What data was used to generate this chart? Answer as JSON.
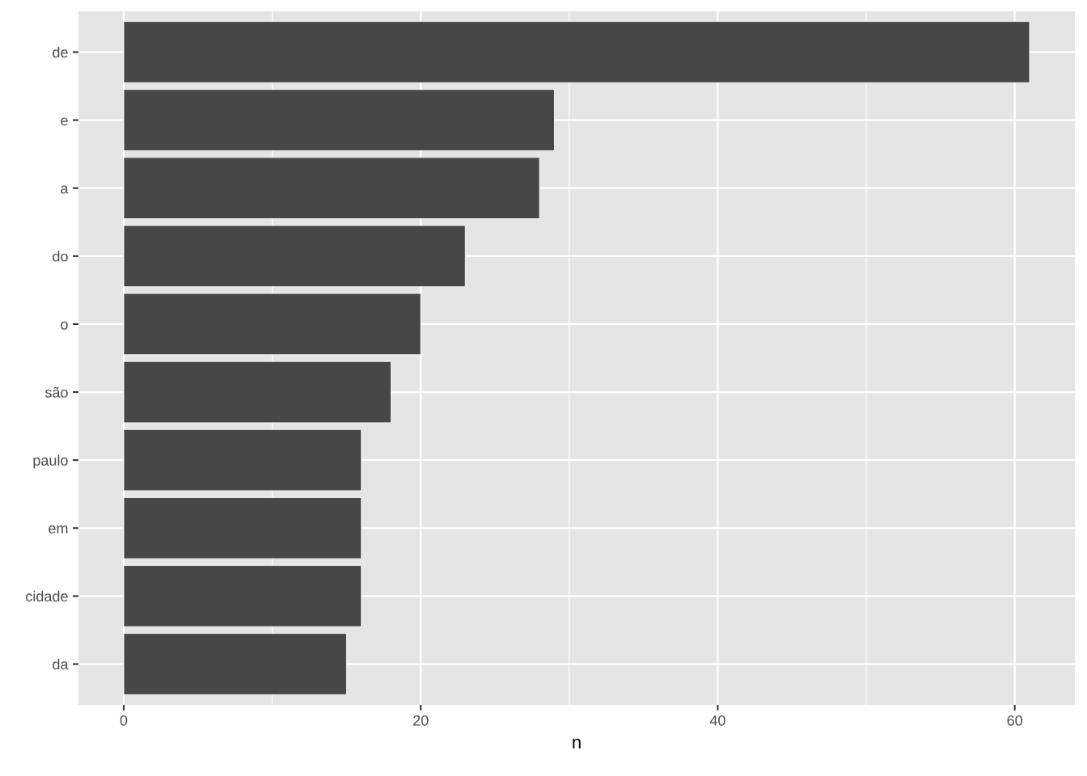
{
  "chart_data": {
    "type": "bar",
    "orientation": "horizontal",
    "xlabel": "n",
    "categories": [
      "de",
      "e",
      "a",
      "do",
      "o",
      "são",
      "paulo",
      "em",
      "cidade",
      "da"
    ],
    "values": [
      61,
      29,
      28,
      23,
      20,
      18,
      16,
      16,
      16,
      15
    ],
    "color": "#474747",
    "xlim": [
      -3.05,
      64.05
    ],
    "xticks": [
      0,
      20,
      40,
      60
    ],
    "grid": true,
    "legend": false
  }
}
